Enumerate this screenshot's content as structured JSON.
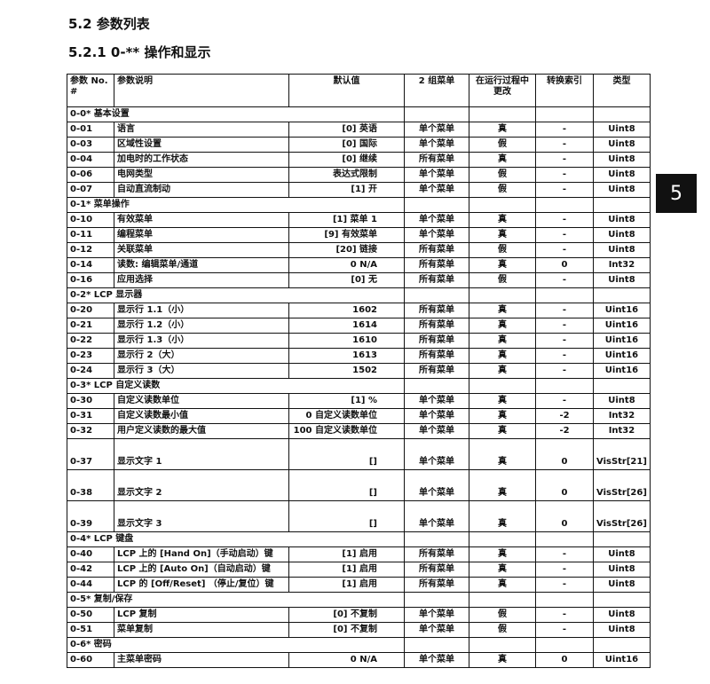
{
  "heading": "5.2  参数列表",
  "subheading": "5.2.1 0-** 操作和显示",
  "chapter_tab": "5",
  "columns": [
    "参数 No. #",
    "参数说明",
    "默认值",
    "2 组菜单",
    "在运行过程中更改",
    "转换索引",
    "类型"
  ],
  "rows": [
    {
      "group": "0-0* 基本设置"
    },
    {
      "no": "0-01",
      "desc": "语言",
      "def": "[0] 英语",
      "set": "单个菜单",
      "chg": "真",
      "idx": "-",
      "type": "Uint8"
    },
    {
      "no": "0-03",
      "desc": "区域性设置",
      "def": "[0] 国际",
      "set": "单个菜单",
      "chg": "假",
      "idx": "-",
      "type": "Uint8"
    },
    {
      "no": "0-04",
      "desc": "加电时的工作状态",
      "def": "[0] 继续",
      "set": "所有菜单",
      "chg": "真",
      "idx": "-",
      "type": "Uint8"
    },
    {
      "no": "0-06",
      "desc": "电网类型",
      "def": "表达式限制",
      "set": "单个菜单",
      "chg": "假",
      "idx": "-",
      "type": "Uint8"
    },
    {
      "no": "0-07",
      "desc": "自动直流制动",
      "def": "[1] 开",
      "set": "单个菜单",
      "chg": "假",
      "idx": "-",
      "type": "Uint8"
    },
    {
      "group": "0-1* 菜单操作"
    },
    {
      "no": "0-10",
      "desc": "有效菜单",
      "def": "[1] 菜单 1",
      "set": "单个菜单",
      "chg": "真",
      "idx": "-",
      "type": "Uint8"
    },
    {
      "no": "0-11",
      "desc": "编程菜单",
      "def": "[9] 有效菜单",
      "set": "单个菜单",
      "chg": "真",
      "idx": "-",
      "type": "Uint8"
    },
    {
      "no": "0-12",
      "desc": "关联菜单",
      "def": "[20] 链接",
      "set": "所有菜单",
      "chg": "假",
      "idx": "-",
      "type": "Uint8"
    },
    {
      "no": "0-14",
      "desc": "读数: 编辑菜单/通道",
      "def": "0 N/A",
      "set": "所有菜单",
      "chg": "真",
      "idx": "0",
      "type": "Int32"
    },
    {
      "no": "0-16",
      "desc": "应用选择",
      "def": "[0] 无",
      "set": "所有菜单",
      "chg": "假",
      "idx": "-",
      "type": "Uint8"
    },
    {
      "group": "0-2* LCP 显示器"
    },
    {
      "no": "0-20",
      "desc": "显示行 1.1（小）",
      "def": "1602",
      "set": "所有菜单",
      "chg": "真",
      "idx": "-",
      "type": "Uint16"
    },
    {
      "no": "0-21",
      "desc": "显示行 1.2（小）",
      "def": "1614",
      "set": "所有菜单",
      "chg": "真",
      "idx": "-",
      "type": "Uint16"
    },
    {
      "no": "0-22",
      "desc": "显示行 1.3（小）",
      "def": "1610",
      "set": "所有菜单",
      "chg": "真",
      "idx": "-",
      "type": "Uint16"
    },
    {
      "no": "0-23",
      "desc": "显示行 2（大）",
      "def": "1613",
      "set": "所有菜单",
      "chg": "真",
      "idx": "-",
      "type": "Uint16"
    },
    {
      "no": "0-24",
      "desc": "显示行 3（大）",
      "def": "1502",
      "set": "所有菜单",
      "chg": "真",
      "idx": "-",
      "type": "Uint16"
    },
    {
      "group": "0-3* LCP 自定义读数"
    },
    {
      "no": "0-30",
      "desc": "自定义读数单位",
      "def": "[1] %",
      "set": "单个菜单",
      "chg": "真",
      "idx": "-",
      "type": "Uint8"
    },
    {
      "no": "0-31",
      "desc": "自定义读数最小值",
      "def": "0 自定义读数单位",
      "set": "单个菜单",
      "chg": "真",
      "idx": "-2",
      "type": "Int32"
    },
    {
      "no": "0-32",
      "desc": "用户定义读数的最大值",
      "def": "100 自定义读数单位",
      "set": "单个菜单",
      "chg": "真",
      "idx": "-2",
      "type": "Int32"
    },
    {
      "no": "0-37",
      "desc": "显示文字 1",
      "def": "[]",
      "set": "单个菜单",
      "chg": "真",
      "idx": "0",
      "type": "VisStr[21]",
      "tall": true
    },
    {
      "no": "0-38",
      "desc": "显示文字 2",
      "def": "[]",
      "set": "单个菜单",
      "chg": "真",
      "idx": "0",
      "type": "VisStr[26]",
      "tall": true
    },
    {
      "no": "0-39",
      "desc": "显示文字 3",
      "def": "[]",
      "set": "单个菜单",
      "chg": "真",
      "idx": "0",
      "type": "VisStr[26]",
      "tall": true
    },
    {
      "group": "0-4* LCP 键盘"
    },
    {
      "no": "0-40",
      "desc": "LCP 上的 [Hand On]（手动启动）键",
      "def": "[1] 启用",
      "set": "所有菜单",
      "chg": "真",
      "idx": "-",
      "type": "Uint8"
    },
    {
      "no": "0-42",
      "desc": "LCP 上的 [Auto On]（自动启动）键",
      "def": "[1] 启用",
      "set": "所有菜单",
      "chg": "真",
      "idx": "-",
      "type": "Uint8"
    },
    {
      "no": "0-44",
      "desc": "LCP 的 [Off/Reset] （停止/复位）键",
      "def": "[1] 启用",
      "set": "所有菜单",
      "chg": "真",
      "idx": "-",
      "type": "Uint8"
    },
    {
      "group": "0-5* 复制/保存"
    },
    {
      "no": "0-50",
      "desc": "LCP 复制",
      "def": "[0] 不复制",
      "set": "单个菜单",
      "chg": "假",
      "idx": "-",
      "type": "Uint8"
    },
    {
      "no": "0-51",
      "desc": "菜单复制",
      "def": "[0] 不复制",
      "set": "单个菜单",
      "chg": "假",
      "idx": "-",
      "type": "Uint8"
    },
    {
      "group": "0-6* 密码"
    },
    {
      "no": "0-60",
      "desc": "主菜单密码",
      "def": "0 N/A",
      "set": "单个菜单",
      "chg": "真",
      "idx": "0",
      "type": "Uint16"
    }
  ]
}
